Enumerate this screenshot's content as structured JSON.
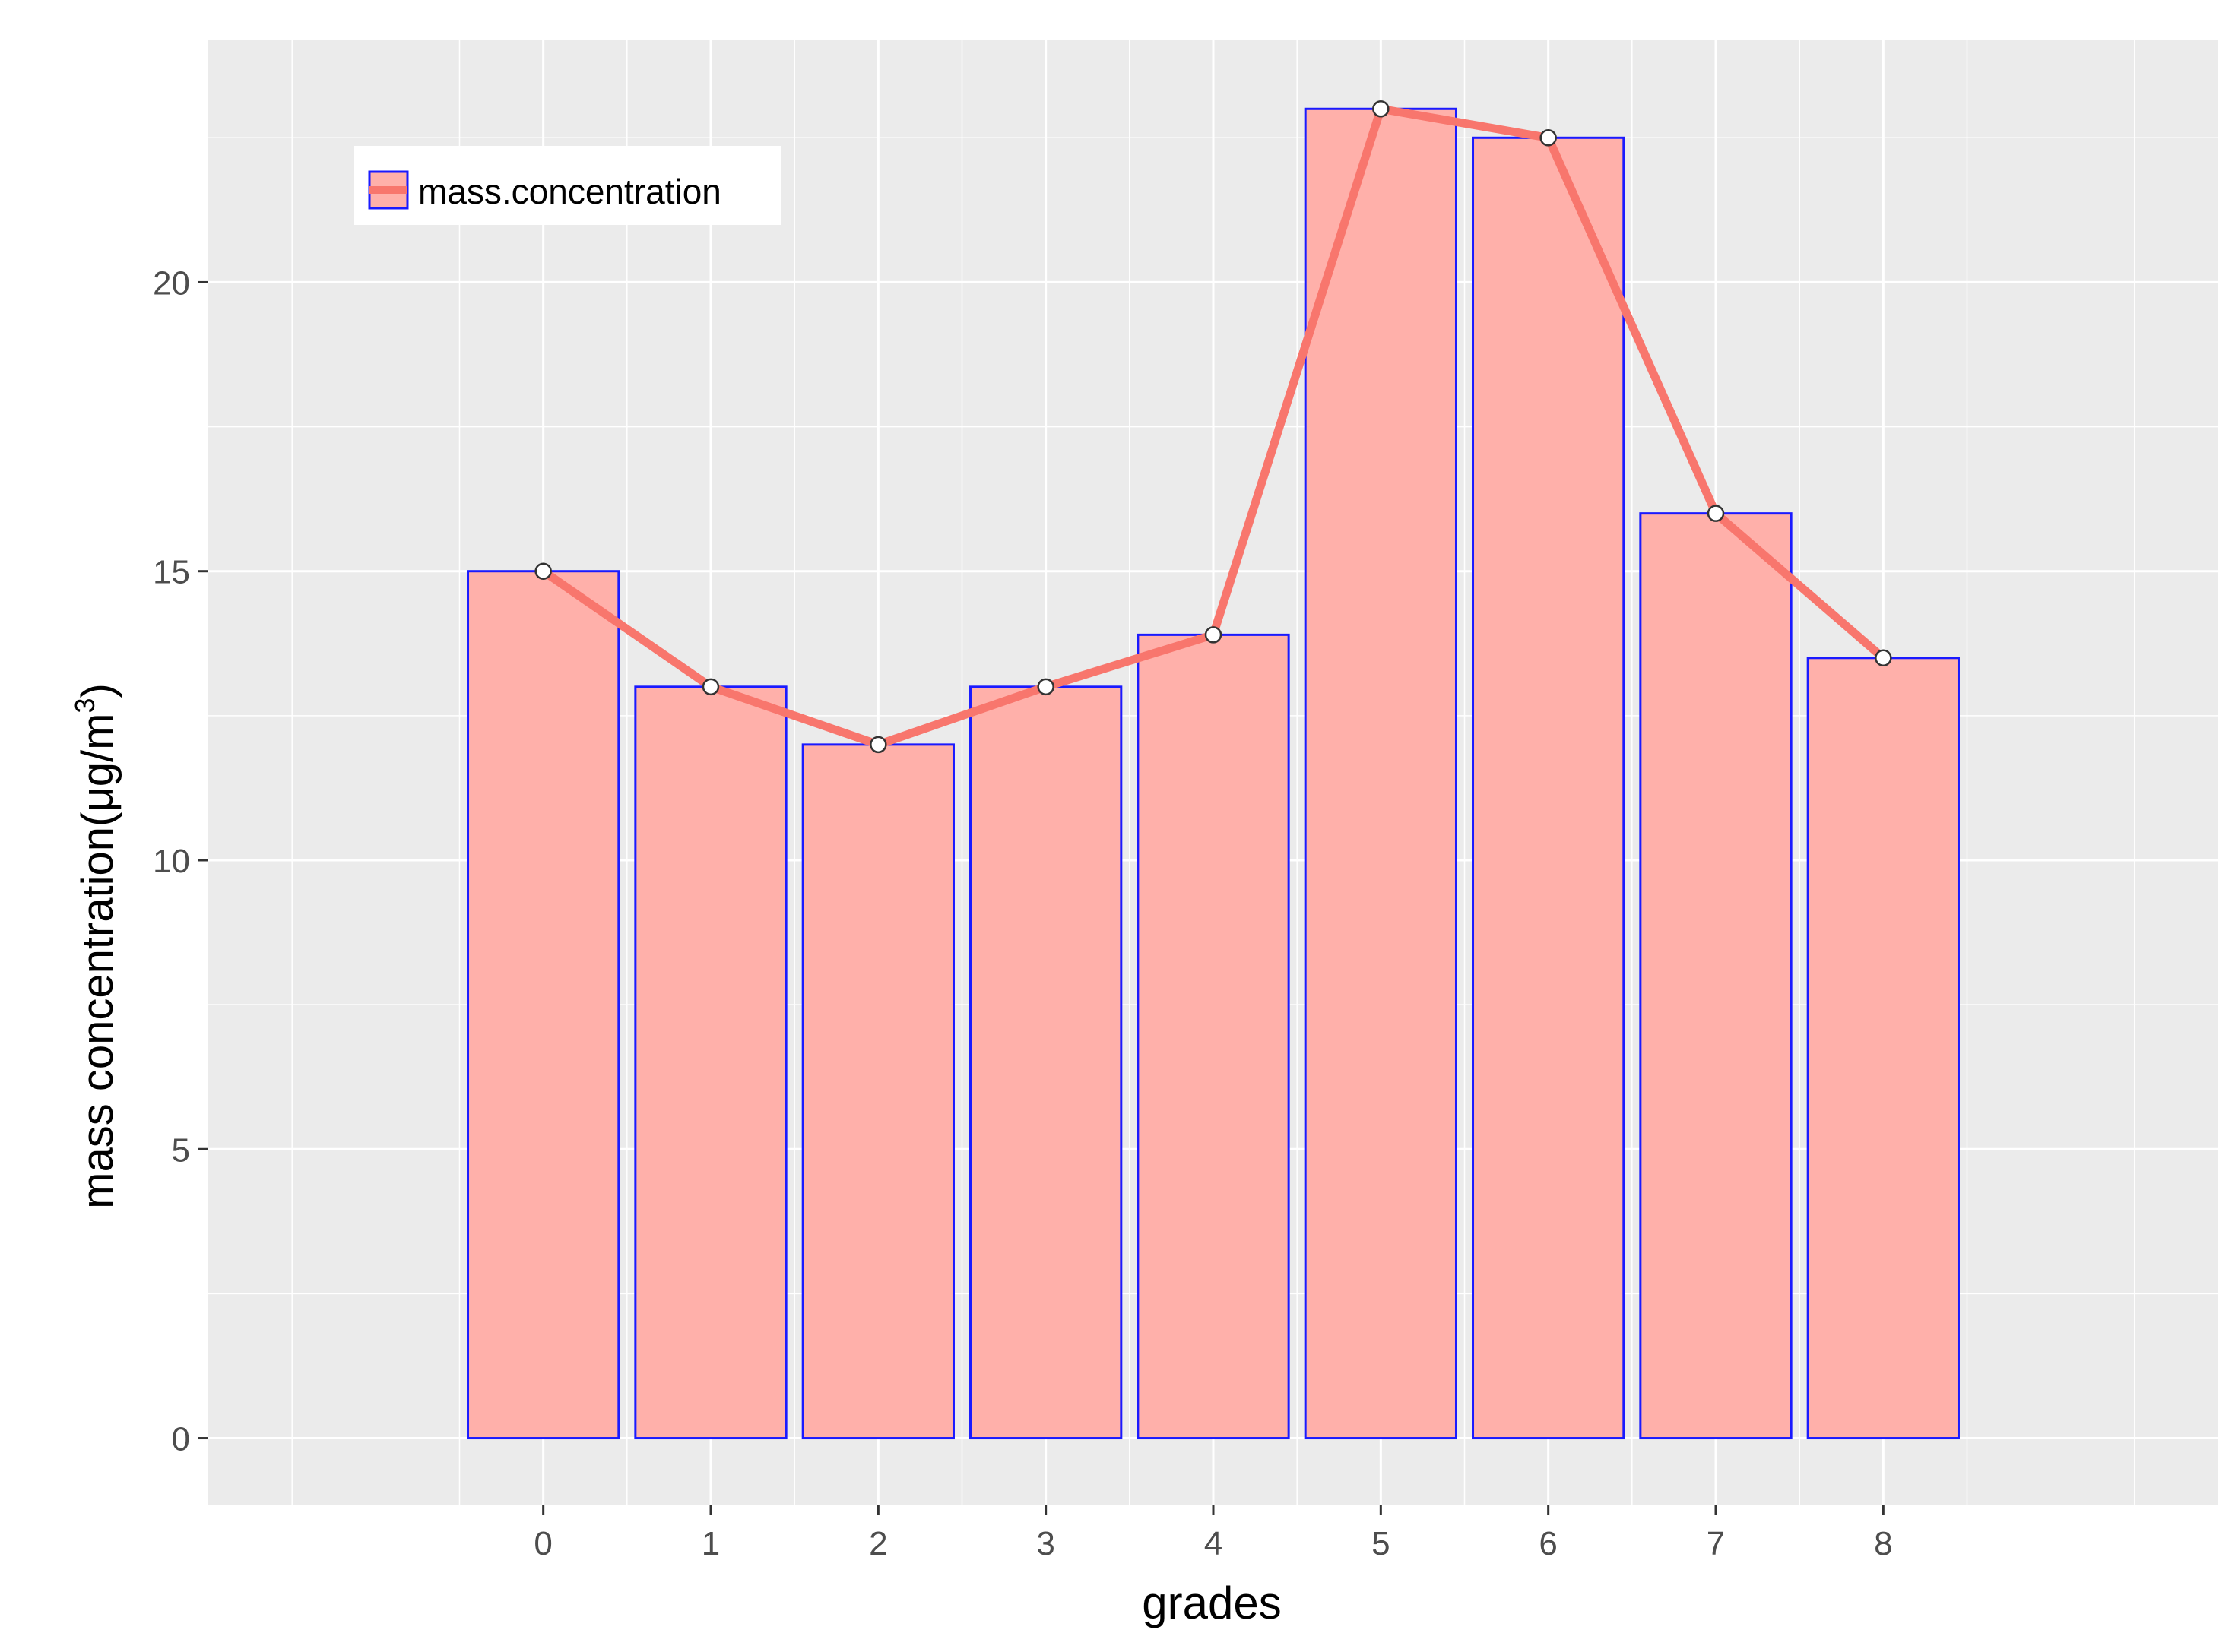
{
  "chart_data": {
    "type": "bar",
    "categories": [
      "0",
      "1",
      "2",
      "3",
      "4",
      "5",
      "6",
      "7",
      "8"
    ],
    "series": [
      {
        "name": "mass.concentration",
        "type": "bar+line",
        "values": [
          15,
          13,
          12,
          13,
          13.9,
          23,
          22.5,
          16,
          13.5
        ]
      }
    ],
    "xlabel": "grades",
    "ylabel": "mass concentration",
    "ylabel_unit_base": "(μg/m",
    "ylabel_unit_sup": "3",
    "ylabel_unit_end": ")",
    "xlim": [
      -2,
      10
    ],
    "ylim": [
      -1.15,
      24.2
    ],
    "y_ticks": [
      0,
      5,
      10,
      15,
      20
    ],
    "grid": true,
    "legend_position": "top-left",
    "colors": {
      "panel_bg": "#ebebeb",
      "grid": "#ffffff",
      "bar_fill": "#ffb0aa",
      "bar_stroke": "#1a1aff",
      "line": "#f8766d",
      "point_fill": "#ffffff",
      "point_stroke": "#333333"
    }
  }
}
